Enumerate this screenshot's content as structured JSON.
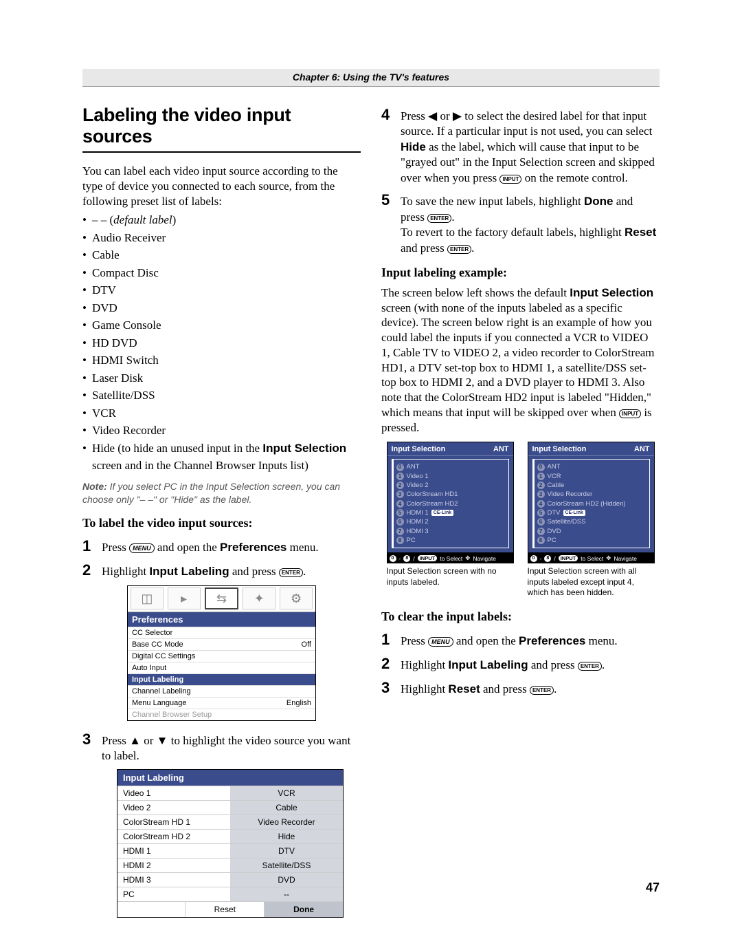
{
  "chapter": "Chapter 6: Using the TV's features",
  "page_number": "47",
  "left": {
    "h1": "Labeling the video input sources",
    "intro": "You can label each video input source according to the type of device you connected to each source, from the following preset list of labels:",
    "labels": [
      "– – (default label)",
      "Audio Receiver",
      "Cable",
      "Compact Disc",
      "DTV",
      "DVD",
      "Game Console",
      "HD DVD",
      "HDMI Switch",
      "Laser Disk",
      "Satellite/DSS",
      "VCR",
      "Video Recorder"
    ],
    "hide_bullet_pre": "Hide (to hide an unused input in the ",
    "hide_bullet_bold": "Input Selection",
    "hide_bullet_post": " screen and in the Channel Browser Inputs list)",
    "note_label": "Note:",
    "note_body": " If you select PC in the Input Selection screen, you can choose only \"– –\" or \"Hide\"  as the label.",
    "subhead": "To label the video input sources:",
    "step1_pre": "Press ",
    "step1_key": "MENU",
    "step1_mid": " and open the ",
    "step1_bold": "Preferences",
    "step1_post": " menu.",
    "step2_pre": "Highlight ",
    "step2_bold": "Input Labeling",
    "step2_mid": " and press ",
    "step2_key": "ENTER",
    "step2_post": ".",
    "prefs": {
      "title": "Preferences",
      "rows": [
        {
          "l": "CC Selector",
          "r": ""
        },
        {
          "l": "Base CC Mode",
          "r": "Off"
        },
        {
          "l": "Digital CC Settings",
          "r": ""
        },
        {
          "l": "Auto Input",
          "r": ""
        },
        {
          "l": "Input Labeling",
          "r": "",
          "hl": true
        },
        {
          "l": "Channel Labeling",
          "r": ""
        },
        {
          "l": "Menu Language",
          "r": "English"
        },
        {
          "l": "Channel Browser Setup",
          "r": "",
          "dim": true
        }
      ]
    },
    "step3_pre": "Press ",
    "step3_up": "▲",
    "step3_or": " or ",
    "step3_dn": "▼",
    "step3_post": " to highlight the video source you want to label.",
    "il": {
      "title": "Input Labeling",
      "rows": [
        {
          "l": "Video 1",
          "r": "VCR"
        },
        {
          "l": "Video 2",
          "r": "Cable"
        },
        {
          "l": "ColorStream HD 1",
          "r": "Video Recorder"
        },
        {
          "l": "ColorStream HD 2",
          "r": "Hide"
        },
        {
          "l": "HDMI 1",
          "r": "DTV"
        },
        {
          "l": "HDMI 2",
          "r": "Satellite/DSS"
        },
        {
          "l": "HDMI 3",
          "r": "DVD"
        },
        {
          "l": "PC",
          "r": "--"
        }
      ],
      "reset": "Reset",
      "done": "Done"
    }
  },
  "right": {
    "step4_pre": "Press ",
    "step4_l": "◀",
    "step4_or": " or ",
    "step4_r": "▶",
    "step4_mid1": " to select the desired label for that input source. If a particular input is not used, you can select ",
    "step4_hide": "Hide",
    "step4_mid2": " as the label, which will cause that input to be \"grayed out\" in the Input Selection screen and skipped over when you press ",
    "step4_key": "INPUT",
    "step4_post": " on the remote control.",
    "step5_pre": "To save the new input labels, highlight ",
    "step5_done": "Done",
    "step5_mid": " and press ",
    "step5_key": "ENTER",
    "step5_post": ".",
    "step5b_pre": "To revert to the factory default labels, highlight ",
    "step5b_reset": "Reset",
    "step5b_mid": " and press ",
    "step5b_key": "ENTER",
    "step5b_post": ".",
    "sub_example": "Input labeling example:",
    "example_para_pre": "The screen below left shows the default ",
    "example_bold": "Input Selection",
    "example_para_mid": " screen (with none of the inputs labeled as a specific device). The screen below right is an example of how you could label the inputs if you connected a VCR to VIDEO 1, Cable TV to VIDEO 2, a video recorder to ColorStream HD1, a DTV set-top box to HDMI 1, a satellite/DSS set-top box to HDMI 2, and a DVD player to HDMI 3. Also note that the ColorStream HD2 input is labeled \"Hidden,\" which means that input will be skipped over when ",
    "example_key": "INPUT",
    "example_para_post": " is pressed.",
    "screen_head_title": "Input Selection",
    "screen_head_ant": "ANT",
    "screen1": {
      "items": [
        {
          "n": "0",
          "t": "ANT"
        },
        {
          "n": "1",
          "t": "Video 1"
        },
        {
          "n": "2",
          "t": "Video 2"
        },
        {
          "n": "3",
          "t": "ColorStream HD1"
        },
        {
          "n": "4",
          "t": "ColorStream HD2"
        },
        {
          "n": "5",
          "t": "HDMI 1",
          "pill": "CE-Link"
        },
        {
          "n": "6",
          "t": "HDMI 2"
        },
        {
          "n": "7",
          "t": "HDMI 3"
        },
        {
          "n": "8",
          "t": "PC"
        }
      ]
    },
    "screen2": {
      "items": [
        {
          "n": "0",
          "t": "ANT"
        },
        {
          "n": "1",
          "t": "VCR"
        },
        {
          "n": "2",
          "t": "Cable"
        },
        {
          "n": "3",
          "t": "Video Recorder"
        },
        {
          "n": "4",
          "t": "ColorStream HD2 (Hidden)"
        },
        {
          "n": "5",
          "t": "DTV",
          "pill": "CE-Link"
        },
        {
          "n": "6",
          "t": "Satellite/DSS"
        },
        {
          "n": "7",
          "t": "DVD"
        },
        {
          "n": "8",
          "t": "PC"
        }
      ]
    },
    "foot_text1": "to Select",
    "foot_text2": "Navigate",
    "foot_input": "INPUT",
    "cap1": "Input Selection screen with no inputs labeled.",
    "cap2": "Input Selection screen with all inputs labeled except input 4, which has been hidden.",
    "sub_clear": "To clear the input labels:",
    "c1_pre": "Press ",
    "c1_key": "MENU",
    "c1_mid": " and open the ",
    "c1_bold": "Preferences",
    "c1_post": " menu.",
    "c2_pre": "Highlight ",
    "c2_bold": "Input Labeling",
    "c2_mid": " and press ",
    "c2_key": "ENTER",
    "c2_post": ".",
    "c3_pre": "Highlight ",
    "c3_bold": "Reset",
    "c3_mid": " and press ",
    "c3_key": "ENTER",
    "c3_post": "."
  }
}
